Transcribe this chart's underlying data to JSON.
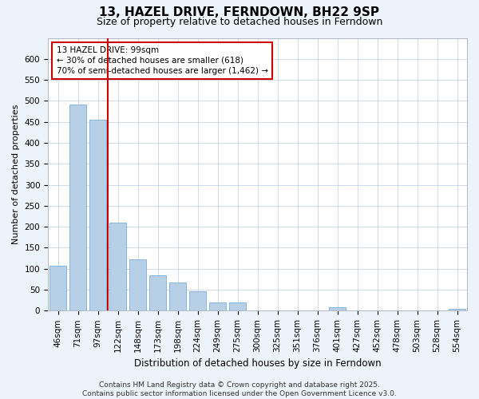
{
  "title": "13, HAZEL DRIVE, FERNDOWN, BH22 9SP",
  "subtitle": "Size of property relative to detached houses in Ferndown",
  "xlabel": "Distribution of detached houses by size in Ferndown",
  "ylabel": "Number of detached properties",
  "categories": [
    "46sqm",
    "71sqm",
    "97sqm",
    "122sqm",
    "148sqm",
    "173sqm",
    "198sqm",
    "224sqm",
    "249sqm",
    "275sqm",
    "300sqm",
    "325sqm",
    "351sqm",
    "376sqm",
    "401sqm",
    "427sqm",
    "452sqm",
    "478sqm",
    "503sqm",
    "528sqm",
    "554sqm"
  ],
  "values": [
    107,
    492,
    455,
    210,
    122,
    85,
    68,
    47,
    20,
    20,
    0,
    0,
    0,
    0,
    8,
    0,
    0,
    0,
    0,
    0,
    5
  ],
  "bar_color": "#b8cfe8",
  "bar_edge_color": "#7aadd4",
  "vline_color": "#cc0000",
  "vline_x_idx": 2,
  "annotation_text": "13 HAZEL DRIVE: 99sqm\n← 30% of detached houses are smaller (618)\n70% of semi-detached houses are larger (1,462) →",
  "annotation_box_facecolor": "#ffffff",
  "annotation_box_edgecolor": "#cc0000",
  "ylim": [
    0,
    650
  ],
  "yticks": [
    0,
    50,
    100,
    150,
    200,
    250,
    300,
    350,
    400,
    450,
    500,
    550,
    600
  ],
  "footer": "Contains HM Land Registry data © Crown copyright and database right 2025.\nContains public sector information licensed under the Open Government Licence v3.0.",
  "bg_color": "#edf3fb",
  "plot_bg_color": "#ffffff",
  "grid_color": "#c8d4e8",
  "title_fontsize": 11,
  "subtitle_fontsize": 9,
  "ylabel_fontsize": 8,
  "xlabel_fontsize": 8.5,
  "tick_fontsize": 7.5,
  "annotation_fontsize": 7.5,
  "footer_fontsize": 6.5
}
